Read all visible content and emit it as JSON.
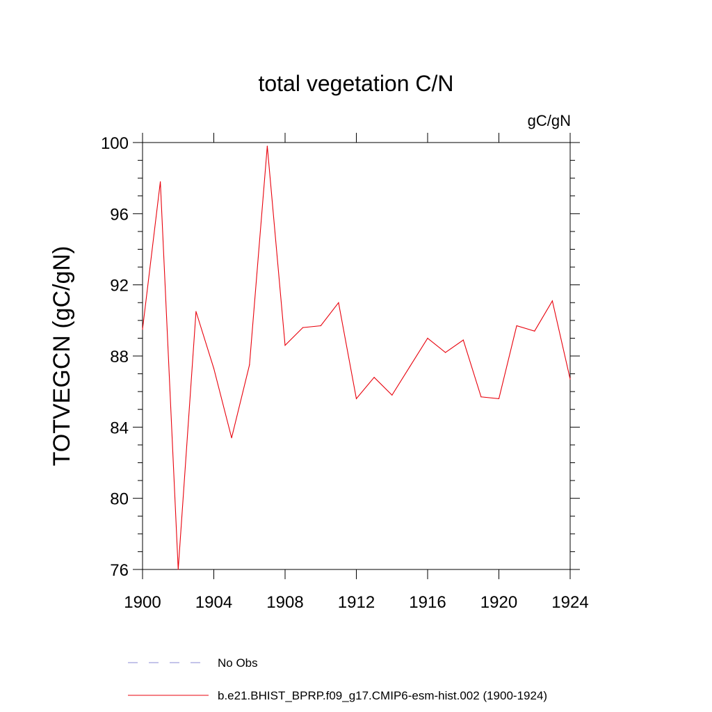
{
  "chart_data": {
    "type": "line",
    "title": "total vegetation C/N",
    "units": "gC/gN",
    "xlabel": "",
    "ylabel": "TOTVEGCN  (gC/gN)",
    "xlim": [
      1900,
      1924
    ],
    "ylim": [
      76,
      100
    ],
    "x_ticks": [
      1900,
      1904,
      1908,
      1912,
      1916,
      1920,
      1924
    ],
    "y_ticks": [
      76,
      80,
      84,
      88,
      92,
      96,
      100
    ],
    "x_tick_labels": [
      "1900",
      "1904",
      "1908",
      "1912",
      "1916",
      "1920",
      "1924"
    ],
    "y_tick_labels": [
      "76",
      "80",
      "84",
      "88",
      "92",
      "96",
      "100"
    ],
    "series": [
      {
        "name": "b.e21.BHIST_BPRP.f09_g17.CMIP6-esm-hist.002 (1900-1924)",
        "color": "#e8000b",
        "x": [
          1900,
          1901,
          1902,
          1903,
          1904,
          1905,
          1906,
          1907,
          1908,
          1909,
          1910,
          1911,
          1912,
          1913,
          1914,
          1915,
          1916,
          1917,
          1918,
          1919,
          1920,
          1921,
          1922,
          1923,
          1924
        ],
        "values": [
          89.5,
          97.8,
          76.0,
          90.5,
          87.3,
          83.4,
          87.5,
          99.8,
          88.6,
          89.6,
          89.7,
          91.0,
          85.6,
          86.8,
          85.8,
          87.4,
          89.0,
          88.2,
          88.9,
          85.7,
          85.6,
          89.7,
          89.4,
          91.1,
          86.7
        ]
      }
    ],
    "legend": [
      {
        "label": "No Obs",
        "style": "dashed",
        "color": "#8a8ad6"
      },
      {
        "label": "b.e21.BHIST_BPRP.f09_g17.CMIP6-esm-hist.002 (1900-1924)",
        "style": "solid",
        "color": "#e8000b"
      }
    ],
    "legend_position": "bottom"
  }
}
